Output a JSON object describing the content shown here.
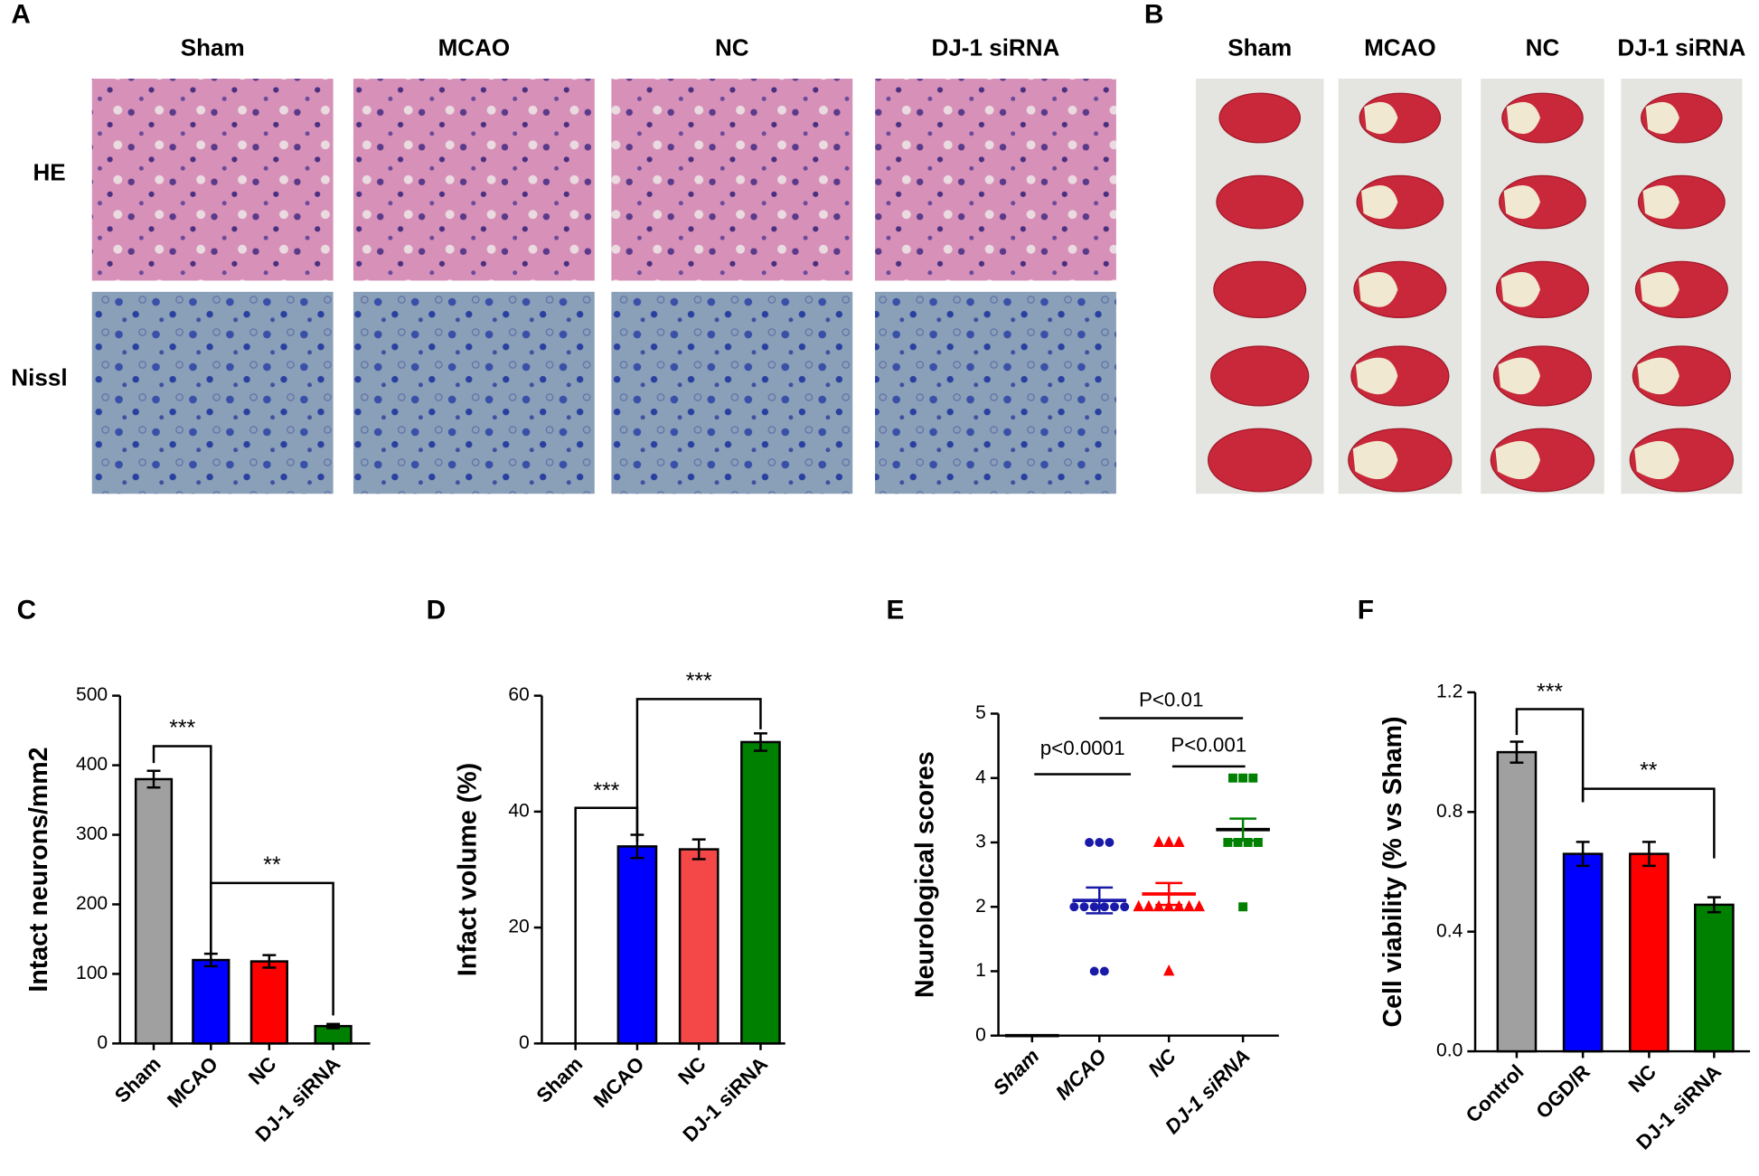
{
  "panel_a": {
    "label": "A",
    "columns": [
      "Sham",
      "MCAO",
      "NC",
      "DJ-1 siRNA"
    ],
    "rows": [
      "HE",
      "Nissl"
    ]
  },
  "panel_b": {
    "label": "B",
    "columns": [
      "Sham",
      "MCAO",
      "NC",
      "DJ-1 siRNA"
    ]
  },
  "chart_data": [
    {
      "type": "bar",
      "panel": "C",
      "ylabel": "Intact neurons/mm2",
      "categories": [
        "Sham",
        "MCAO",
        "NC",
        "DJ-1 siRNA"
      ],
      "values": [
        380,
        120,
        118,
        25
      ],
      "errors": [
        12,
        9,
        9,
        3
      ],
      "colors": [
        "#a0a0a0",
        "#0000ff",
        "#ff0000",
        "#008000"
      ],
      "ylim": [
        0,
        500
      ],
      "yticks": [
        0,
        100,
        200,
        300,
        400,
        500
      ],
      "annotations": [
        "***",
        "**"
      ]
    },
    {
      "type": "bar",
      "panel": "D",
      "ylabel": "Infact volume (%)",
      "categories": [
        "Sham",
        "MCAO",
        "NC",
        "DJ-1 siRNA"
      ],
      "values": [
        0,
        34,
        33.5,
        52
      ],
      "errors": [
        0,
        2,
        1.7,
        1.5
      ],
      "colors": [
        "#a0a0a0",
        "#0000ff",
        "#f44848",
        "#008000"
      ],
      "ylim": [
        0,
        60
      ],
      "yticks": [
        0,
        20,
        40,
        60
      ],
      "annotations": [
        "***",
        "***"
      ]
    },
    {
      "type": "dot",
      "panel": "E",
      "ylabel": "Neurological scores",
      "categories": [
        "Sham",
        "MCAO",
        "NC",
        "DJ-1 siRNA"
      ],
      "groups": [
        {
          "color": "#000000",
          "marker": "dash",
          "values": [
            0,
            0,
            0,
            0,
            0,
            0,
            0,
            0,
            0,
            0
          ],
          "mean": 0,
          "sem": 0
        },
        {
          "color": "#1a1aa8",
          "marker": "circle",
          "values": [
            3,
            3,
            3,
            2,
            2,
            2,
            2,
            2,
            2,
            1,
            1
          ],
          "mean": 2.1,
          "sem": 0.2
        },
        {
          "color": "#ff0000",
          "marker": "triangle",
          "values": [
            3,
            3,
            3,
            2,
            2,
            2,
            2,
            2,
            2,
            2,
            1
          ],
          "mean": 2.2,
          "sem": 0.17
        },
        {
          "color": "#008000",
          "marker": "square",
          "values": [
            4,
            4,
            4,
            3,
            3,
            3,
            3,
            2
          ],
          "mean": 3.2,
          "sem": 0.17
        }
      ],
      "ylim": [
        0,
        5
      ],
      "yticks": [
        0,
        1,
        2,
        3,
        4,
        5
      ],
      "annotations": [
        "p<0.0001",
        "P<0.01",
        "P<0.001"
      ]
    },
    {
      "type": "bar",
      "panel": "F",
      "ylabel": "Cell viability (% vs Sham)",
      "categories": [
        "Control",
        "OGD/R",
        "NC",
        "DJ-1 siRNA"
      ],
      "values": [
        1.0,
        0.66,
        0.66,
        0.49
      ],
      "errors": [
        0.035,
        0.04,
        0.04,
        0.025
      ],
      "colors": [
        "#a0a0a0",
        "#0000ff",
        "#ff0000",
        "#008000"
      ],
      "ylim": [
        0,
        1.2
      ],
      "yticks": [
        {
          "value": 0,
          "label": "0.0"
        },
        0.4,
        0.8,
        1.2
      ],
      "annotations": [
        "***",
        "**"
      ]
    }
  ]
}
